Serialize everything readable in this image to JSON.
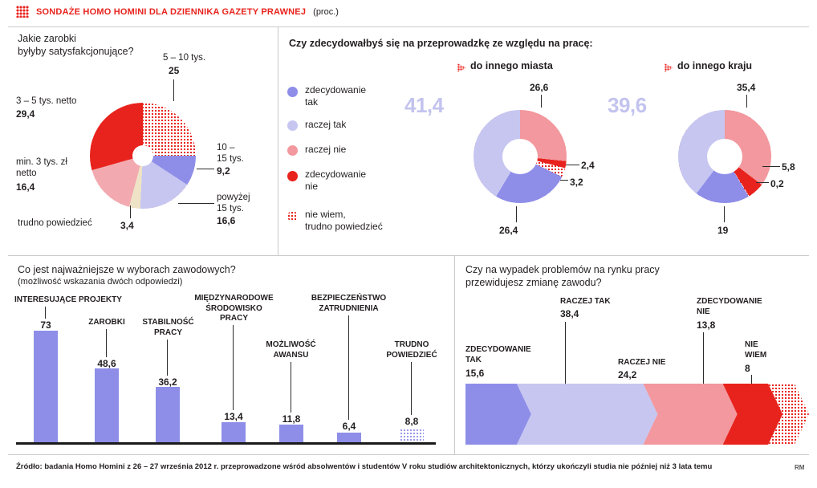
{
  "header": {
    "title": "SONDAŻE HOMO HOMINI DLA DZIENNIKA GAZETY PRAWNEJ",
    "unit": "(proc.)"
  },
  "colors": {
    "zdec_tak": "#8e8ee9",
    "raczej_tak": "#c6c6f1",
    "raczej_nie": "#f2989e",
    "zdec_nie": "#e8231d",
    "pink_light": "#f2aab0",
    "cream": "#eee3c6",
    "highlight_text": "#c3c3ef"
  },
  "relocation_title": "Czy zdecydowałbyś się na przeprowadzkę ze względu na pracę:",
  "legend": {
    "items": [
      {
        "label": "zdecydowanie\ntak",
        "color": "zdec_tak"
      },
      {
        "label": "raczej tak",
        "color": "raczej_tak"
      },
      {
        "label": "raczej nie",
        "color": "raczej_nie"
      },
      {
        "label": "zdecydowanie\nnie",
        "color": "zdec_nie"
      },
      {
        "label": "nie wiem,\ntrudno powiedzieć",
        "color": "pattern"
      }
    ]
  },
  "chart_data": [
    {
      "id": "salary_expectations",
      "type": "pie",
      "title": "Jakie zarobki\nbyłyby satysfakcjonujące?",
      "unit": "proc.",
      "segments": [
        {
          "label": "5 – 10 tys.",
          "value": 25,
          "display": "25",
          "color": "pattern"
        },
        {
          "label": "10 –\n15 tys.",
          "value": 9.2,
          "display": "9,2",
          "color": "zdec_tak"
        },
        {
          "label": "powyżej\n15 tys.",
          "value": 16.6,
          "display": "16,6",
          "color": "raczej_tak"
        },
        {
          "label": "trudno powiedzieć",
          "value": 3.4,
          "display": "3,4",
          "color": "cream"
        },
        {
          "label": "min. 3 tys. zł\nnetto",
          "value": 16.4,
          "display": "16,4",
          "color": "pink_light"
        },
        {
          "label": "3 – 5 tys. netto",
          "value": 29.4,
          "display": "29,4",
          "color": "zdec_nie"
        }
      ]
    },
    {
      "id": "move_to_another_city",
      "type": "pie",
      "title": "do innego miasta",
      "highlight": "41,4",
      "segments": [
        {
          "label": "raczej nie",
          "value": 26.6,
          "display": "26,6",
          "color": "raczej_nie"
        },
        {
          "label": "zdecydowanie nie",
          "value": 2.4,
          "display": "2,4",
          "color": "zdec_nie"
        },
        {
          "label": "nie wiem, trudno powiedzieć",
          "value": 3.2,
          "display": "3,2",
          "color": "pattern"
        },
        {
          "label": "zdecydowanie tak",
          "value": 26.4,
          "display": "26,4",
          "color": "zdec_tak"
        },
        {
          "label": "raczej tak",
          "value": 41.4,
          "display": "41,4",
          "color": "raczej_tak"
        }
      ]
    },
    {
      "id": "move_to_another_country",
      "type": "pie",
      "title": "do innego kraju",
      "highlight": "39,6",
      "segments": [
        {
          "label": "raczej nie",
          "value": 35.4,
          "display": "35,4",
          "color": "raczej_nie"
        },
        {
          "label": "zdecydowanie nie",
          "value": 5.8,
          "display": "5,8",
          "color": "zdec_nie"
        },
        {
          "label": "nie wiem, trudno powiedzieć",
          "value": 0.2,
          "display": "0,2",
          "color": "pattern"
        },
        {
          "label": "zdecydowanie tak",
          "value": 19,
          "display": "19",
          "color": "zdec_tak"
        },
        {
          "label": "raczej tak",
          "value": 39.6,
          "display": "39,6",
          "color": "raczej_tak"
        }
      ]
    },
    {
      "id": "career_priorities",
      "type": "bar",
      "title": "Co jest najważniejsze w wyborach zawodowych?",
      "subtitle": "(możliwość wskazania dwóch odpowiedzi)",
      "ylim": [
        0,
        80
      ],
      "bars": [
        {
          "label": "INTERESUJĄCE PROJEKTY",
          "value": 73,
          "display": "73",
          "color": "zdec_tak"
        },
        {
          "label": "ZAROBKI",
          "value": 48.6,
          "display": "48,6",
          "color": "zdec_tak"
        },
        {
          "label": "STABILNOŚĆ\nPRACY",
          "value": 36.2,
          "display": "36,2",
          "color": "zdec_tak"
        },
        {
          "label": "MIĘDZYNARODOWE\nŚRODOWISKO\nPRACY",
          "value": 13.4,
          "display": "13,4",
          "color": "zdec_tak"
        },
        {
          "label": "MOŻLIWOŚĆ\nAWANSU",
          "value": 11.8,
          "display": "11,8",
          "color": "zdec_tak"
        },
        {
          "label": "BEZPIECZEŃSTWO\nZATRUDNIENIA",
          "value": 6.4,
          "display": "6,4",
          "color": "zdec_tak"
        },
        {
          "label": "TRUDNO\nPOWIEDZIEĆ",
          "value": 8.8,
          "display": "8,8",
          "color": "pattern"
        }
      ]
    },
    {
      "id": "job_change_outlook",
      "type": "funnel",
      "title": "Czy na wypadek problemów na rynku pracy\nprzewidujesz zmianę zawodu?",
      "segments": [
        {
          "label": "ZDECYDOWANIE\nTAK",
          "value": 15.6,
          "display": "15,6",
          "color": "zdec_tak"
        },
        {
          "label": "RACZEJ TAK",
          "value": 38.4,
          "display": "38,4",
          "color": "raczej_tak"
        },
        {
          "label": "RACZEJ NIE",
          "value": 24.2,
          "display": "24,2",
          "color": "raczej_nie"
        },
        {
          "label": "ZDECYDOWANIE\nNIE",
          "value": 13.8,
          "display": "13,8",
          "color": "zdec_nie"
        },
        {
          "label": "NIE\nWIEM",
          "value": 8,
          "display": "8",
          "color": "pattern"
        }
      ]
    }
  ],
  "source": "Źródło: badania Homo Homini z 26 – 27 września 2012 r. przeprowadzone wśród absolwentów i studentów V roku studiów architektonicznych, którzy ukończyli studia nie później niż 3 lata temu",
  "credit": "RM"
}
